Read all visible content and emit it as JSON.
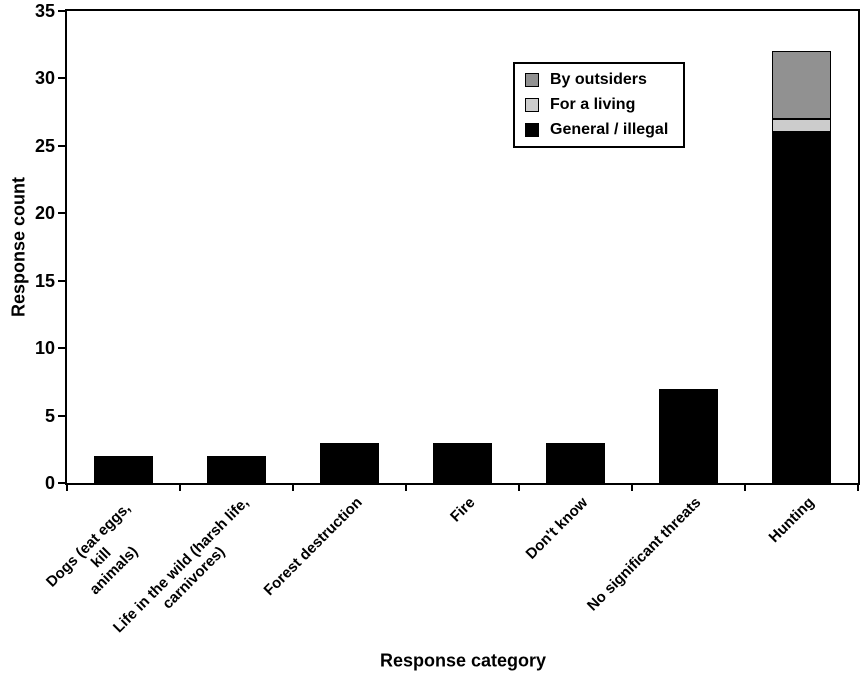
{
  "figure": {
    "background": "#ffffff",
    "frame_color": "#000000"
  },
  "chart_data": {
    "type": "bar",
    "stacked": true,
    "title": "",
    "xlabel": "Response category",
    "ylabel": "Response count",
    "ylim": [
      0,
      35
    ],
    "ytick_step": 5,
    "ytick_labels": [
      "0",
      "5",
      "10",
      "15",
      "20",
      "25",
      "30",
      "35"
    ],
    "grid": false,
    "legend_position": "inside-top-right",
    "categories": [
      "Dogs (eat eggs, kill\nanimals)",
      "Life in the wild (harsh life,\ncarnivores)",
      "Forest destruction",
      "Fire",
      "Don't know",
      "No significant threats",
      "Hunting"
    ],
    "series": [
      {
        "name": "General / illegal",
        "color": "#000000",
        "values": [
          2,
          2,
          3,
          3,
          3,
          7,
          26
        ]
      },
      {
        "name": "For a living",
        "color": "#cccccc",
        "values": [
          0,
          0,
          0,
          0,
          0,
          0,
          1
        ]
      },
      {
        "name": "By outsiders",
        "color": "#919191",
        "values": [
          0,
          0,
          0,
          0,
          0,
          0,
          5
        ]
      }
    ],
    "totals": [
      2,
      2,
      3,
      3,
      3,
      7,
      32
    ],
    "legend_entries": [
      {
        "label": "By outsiders",
        "color": "#919191"
      },
      {
        "label": "For a living",
        "color": "#cccccc"
      },
      {
        "label": "General / illegal",
        "color": "#000000"
      }
    ]
  }
}
